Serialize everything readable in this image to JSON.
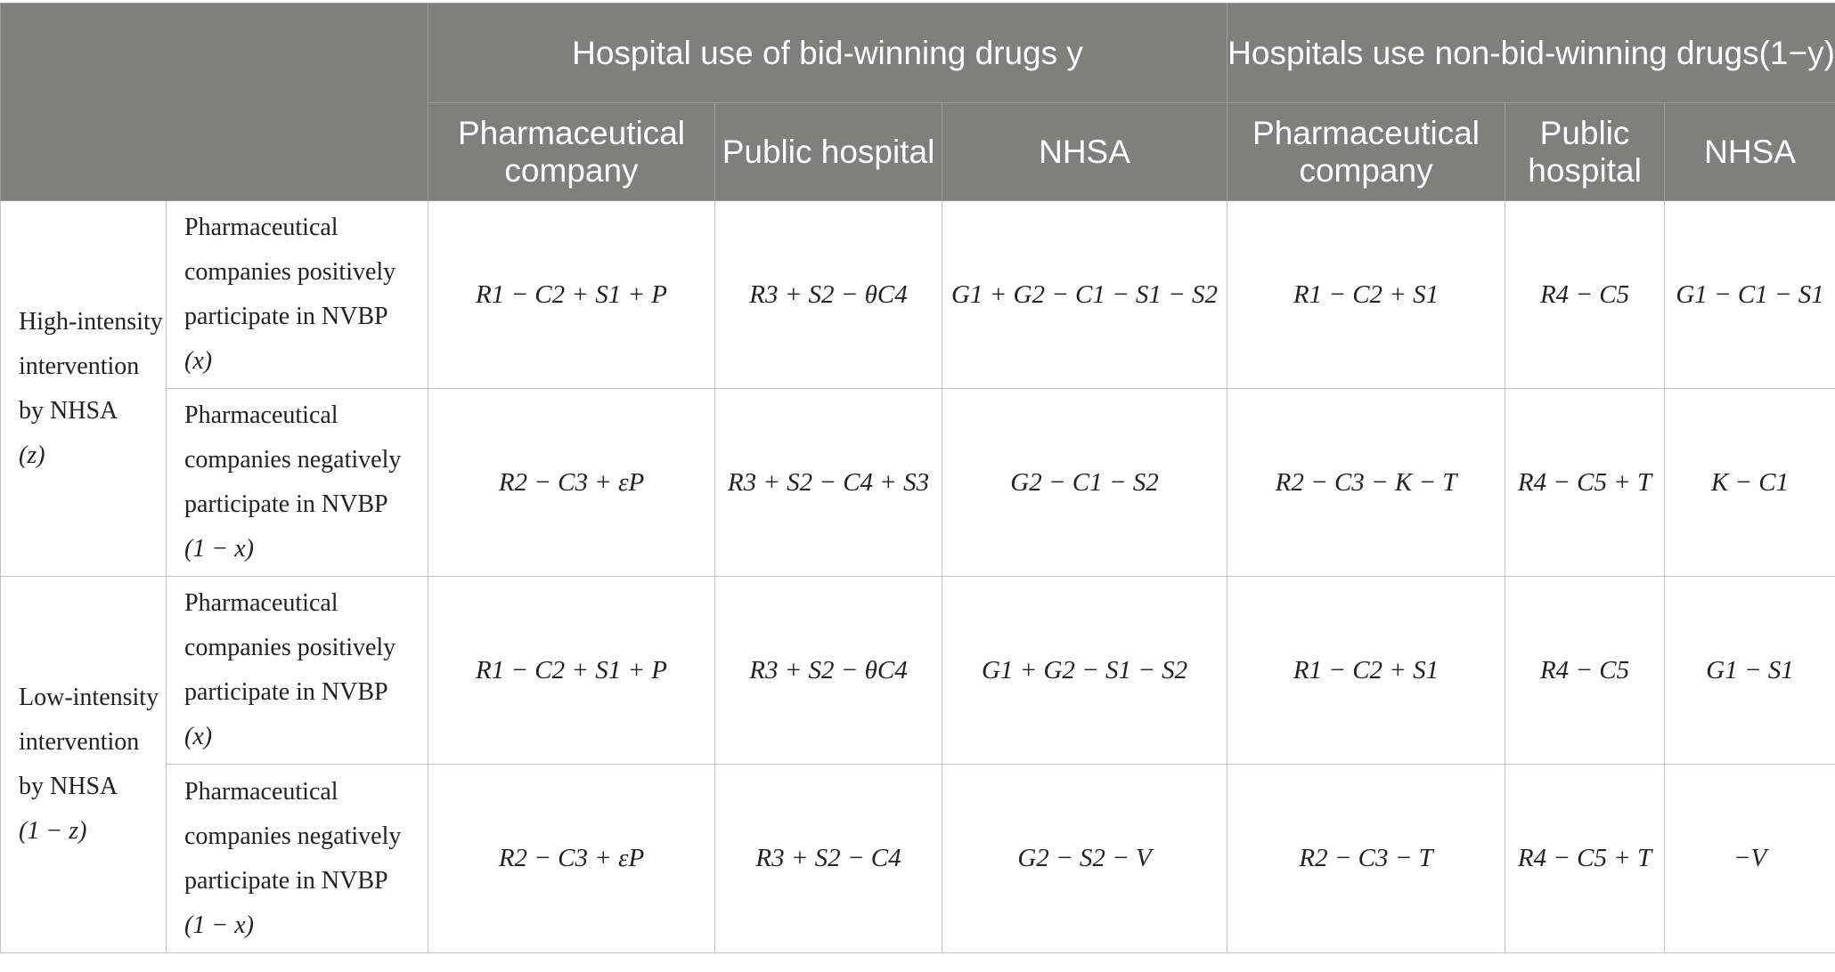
{
  "headers": {
    "group_bid": "Hospital use of bid-winning drugs y",
    "group_nonbid": "Hospitals use non-bid-winning drugs(1−y)",
    "cols": [
      "Pharmaceutical company",
      "Public hospital",
      "NHSA",
      "Pharmaceutical company",
      "Public hospital",
      "NHSA"
    ]
  },
  "groups": [
    {
      "label": "High-intensity intervention by NHSA",
      "var": "(z)",
      "rows": [
        {
          "label": "Pharmaceutical companies positively participate in NVBP",
          "var": "(x)",
          "cells": [
            "R1 − C2 + S1 + P",
            "R3 + S2 − θC4",
            "G1 + G2 − C1 − S1 − S2",
            "R1 − C2 + S1",
            "R4 − C5",
            "G1 − C1 − S1"
          ]
        },
        {
          "label": "Pharmaceutical companies negatively participate in NVBP",
          "var": "(1 − x)",
          "cells": [
            "R2 − C3 + εP",
            "R3 + S2 − C4 + S3",
            "G2 − C1 − S2",
            "R2 − C3 − K − T",
            "R4 − C5 + T",
            "K − C1"
          ]
        }
      ]
    },
    {
      "label": "Low-intensity intervention by NHSA",
      "var": "(1 − z)",
      "rows": [
        {
          "label": "Pharmaceutical companies positively participate in NVBP",
          "var": "(x)",
          "cells": [
            "R1 − C2 + S1 + P",
            "R3 + S2 − θC4",
            "G1 + G2 − S1 − S2",
            "R1 − C2 + S1",
            "R4 − C5",
            "G1 − S1"
          ]
        },
        {
          "label": "Pharmaceutical companies negatively participate in NVBP",
          "var": "(1 − x)",
          "cells": [
            "R2 − C3 + εP",
            "R3 + S2 − C4",
            "G2 − S2 − V",
            "R2 − C3 − T",
            "R4 − C5 + T",
            "−V"
          ]
        }
      ]
    }
  ]
}
